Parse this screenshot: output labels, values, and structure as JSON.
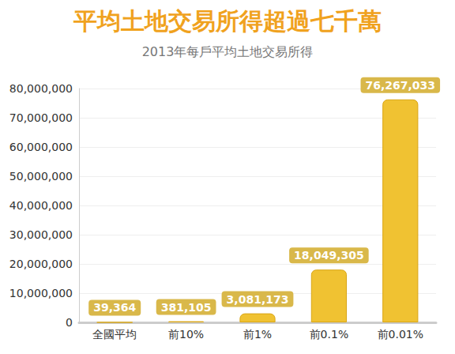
{
  "chart_data": {
    "type": "bar",
    "title": "平均土地交易所得超過七千萬",
    "subtitle": "2013年每戶平均土地交易所得",
    "categories": [
      "全國平均",
      "前10%",
      "前1%",
      "前0.1%",
      "前0.01%"
    ],
    "values": [
      39364,
      381105,
      3081173,
      18049305,
      76267033
    ],
    "value_labels": [
      "39,364",
      "381,105",
      "3,081,173",
      "18,049,305",
      "76,267,033"
    ],
    "color": "#f0c232",
    "data_labels": true,
    "grid": true,
    "ylim": [
      0,
      80000000
    ],
    "yticks": [
      0,
      {
        "value": 10000000,
        "label": "10,000,000"
      },
      {
        "value": 20000000,
        "label": "20,000,000"
      },
      {
        "value": 30000000,
        "label": "30,000,000"
      },
      {
        "value": 40000000,
        "label": "40,000,000"
      },
      {
        "value": 50000000,
        "label": "50,000,000"
      },
      {
        "value": 60000000,
        "label": "60,000,000"
      },
      {
        "value": 70000000,
        "label": "70,000,000"
      },
      {
        "value": 80000000,
        "label": "80,000,000"
      }
    ]
  }
}
